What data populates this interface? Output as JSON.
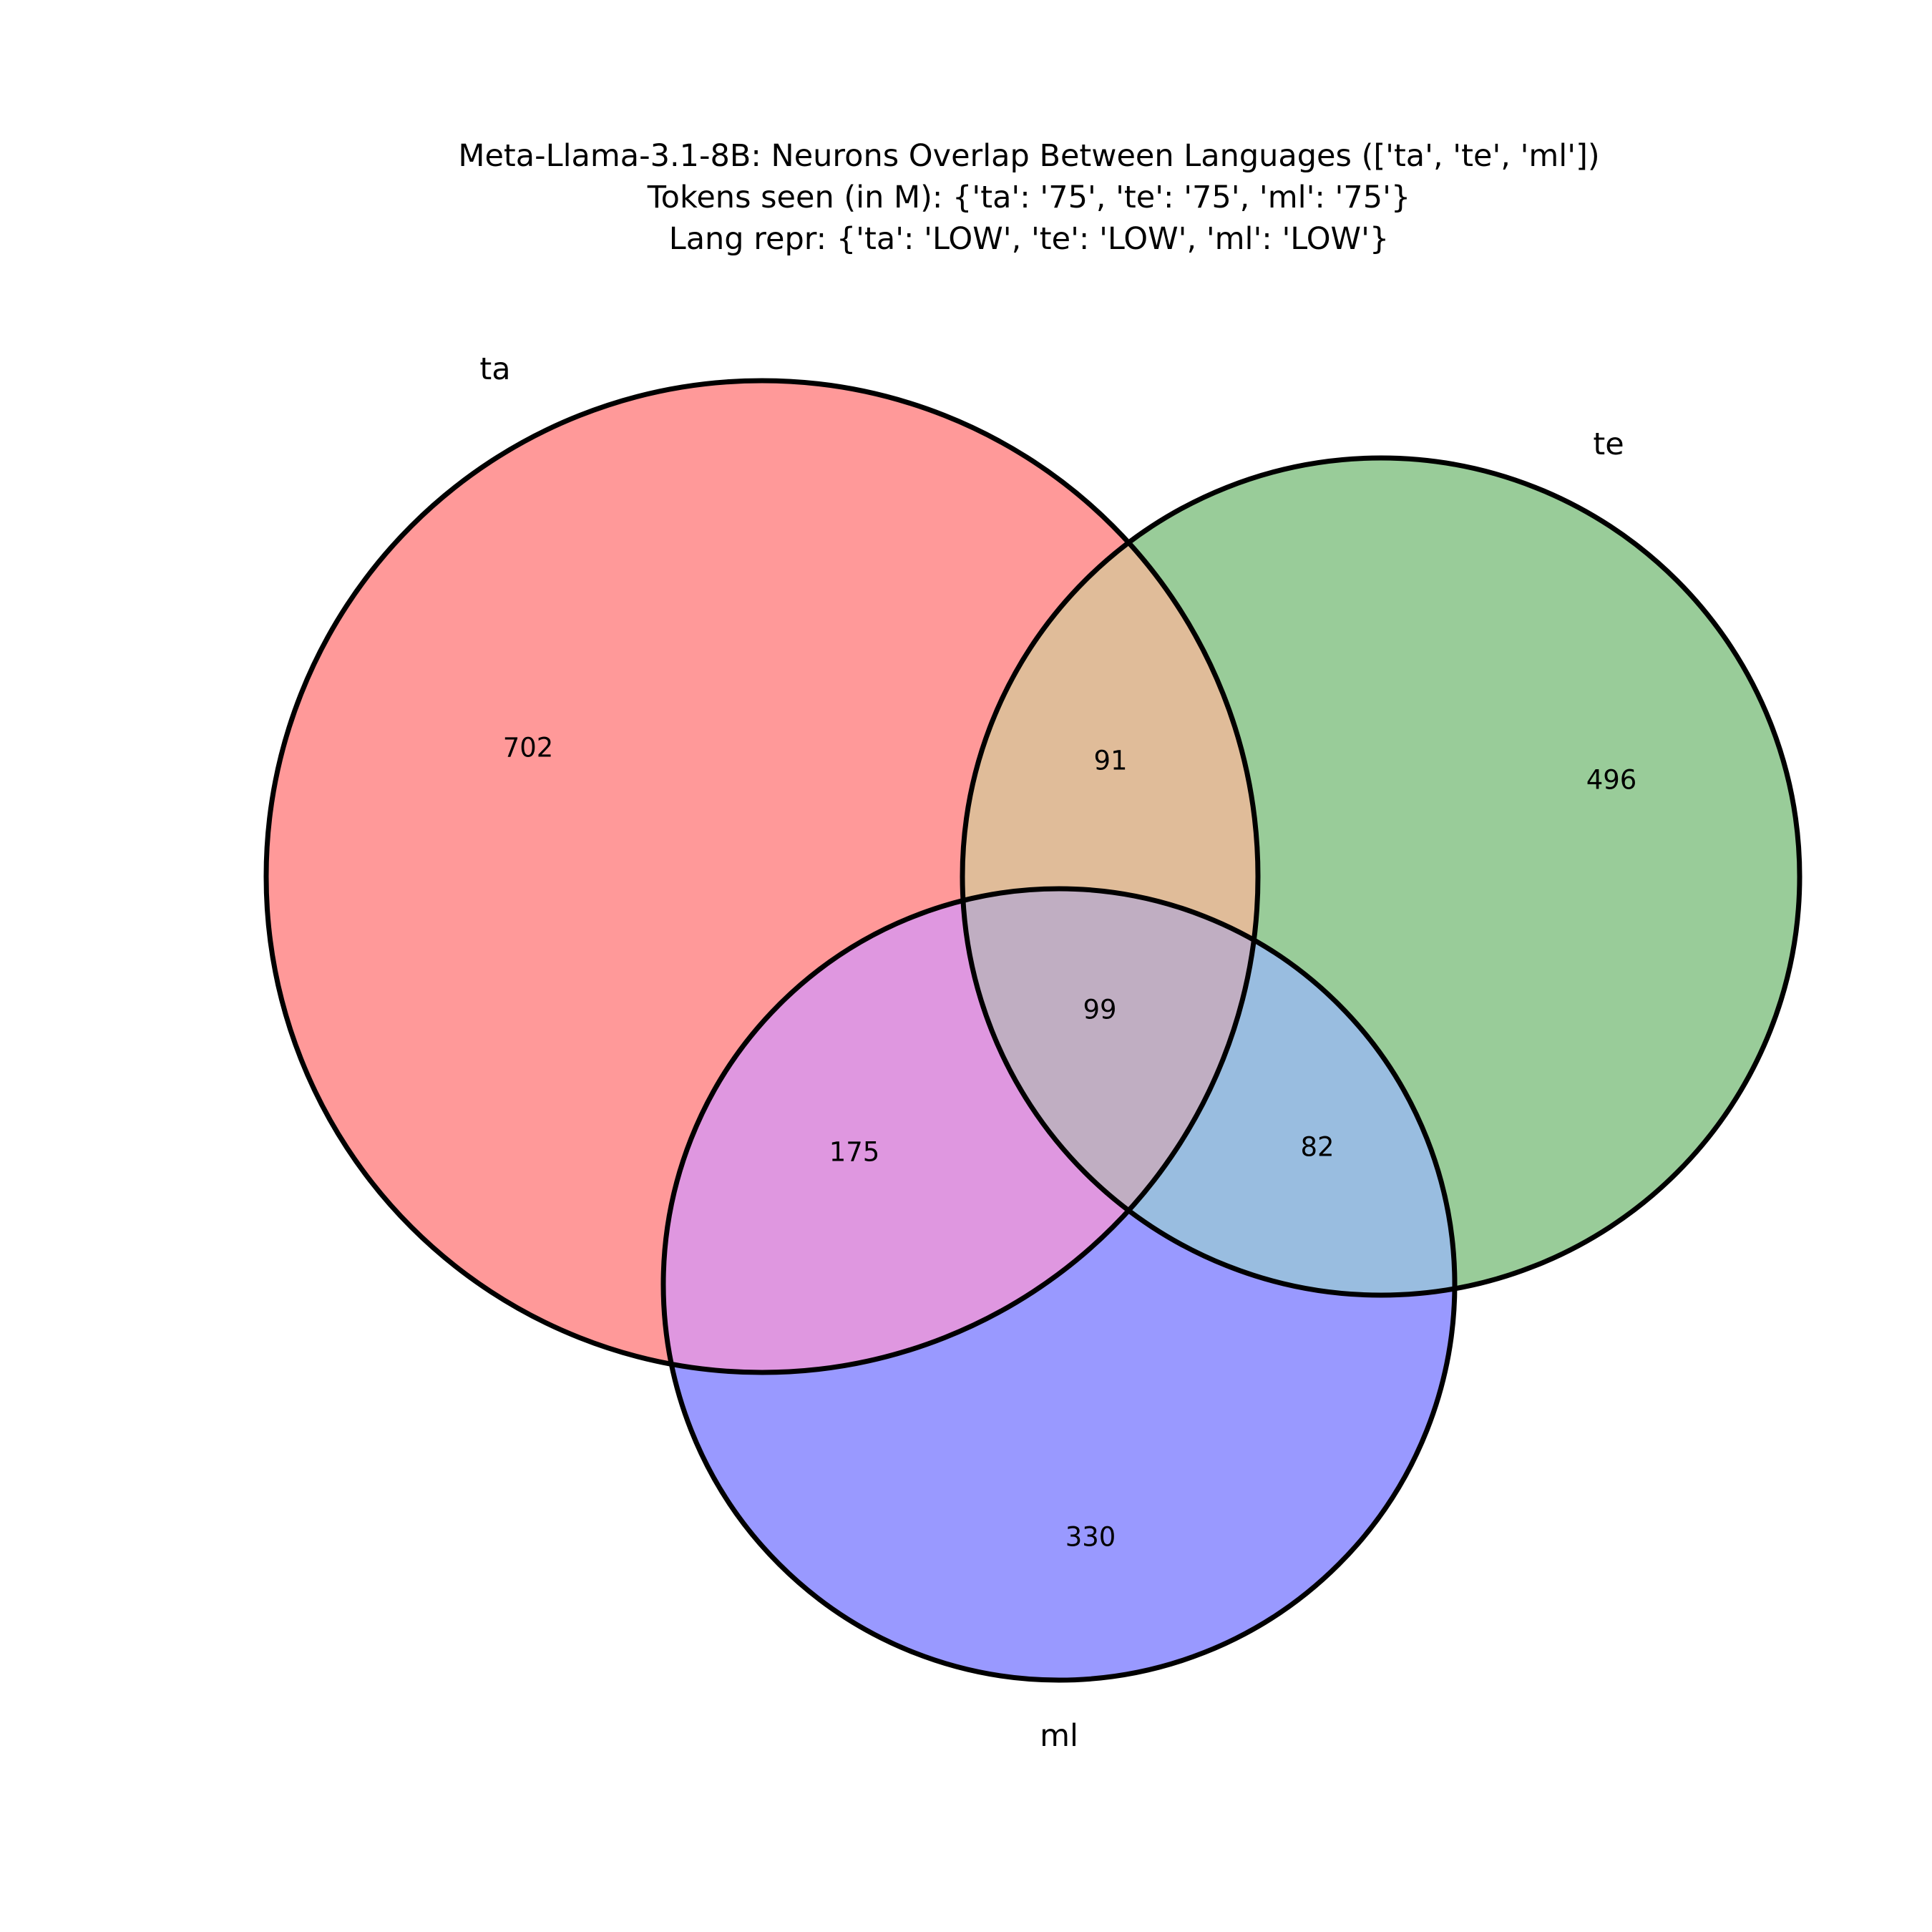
{
  "title": {
    "line1": "Meta-Llama-3.1-8B: Neurons Overlap Between Languages (['ta', 'te', 'ml'])",
    "line2": "Tokens seen (in M): {'ta': '75', 'te': '75', 'ml': '75'}",
    "line3": "Lang repr: {'ta': 'LOW', 'te': 'LOW', 'ml': 'LOW'}"
  },
  "sets": {
    "ta": {
      "label": "ta",
      "color": "#ff9999"
    },
    "te": {
      "label": "te",
      "color": "#99cc99"
    },
    "ml": {
      "label": "ml",
      "color": "#9999ff"
    }
  },
  "regions": {
    "ta_only": {
      "value": "702",
      "color": "#ff9999"
    },
    "te_only": {
      "value": "496",
      "color": "#99cc99"
    },
    "ml_only": {
      "value": "330",
      "color": "#9999ff"
    },
    "ta_te": {
      "value": "91",
      "color": "#e0bc99"
    },
    "ta_ml": {
      "value": "175",
      "color": "#df97e0"
    },
    "te_ml": {
      "value": "82",
      "color": "#99bde0"
    },
    "ta_te_ml": {
      "value": "99",
      "color": "#c0aec2"
    }
  }
}
